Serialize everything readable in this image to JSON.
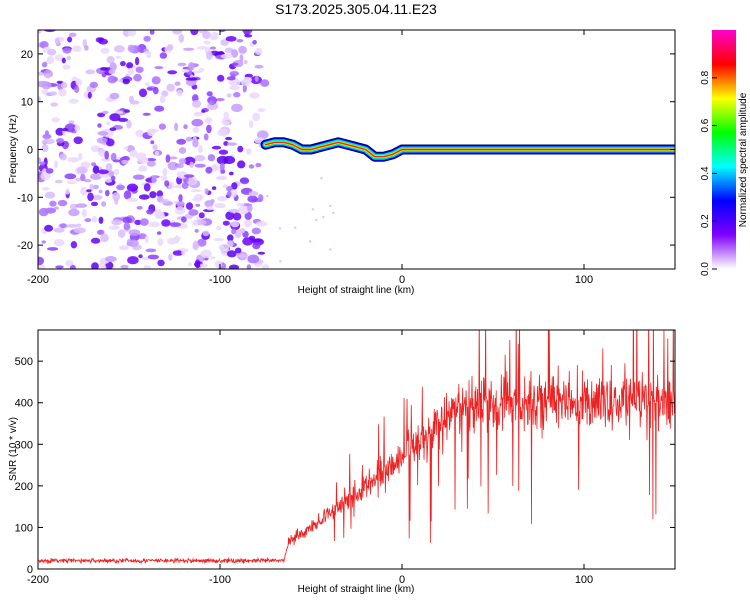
{
  "figure_title": "S173.2025.305.04.11.E23",
  "chart_data": [
    {
      "type": "heatmap",
      "id": "spectrogram",
      "xlabel": "Height of straight line (km)",
      "ylabel": "Frequency (Hz)",
      "xlim": [
        -200,
        150
      ],
      "ylim": [
        -25,
        25
      ],
      "xticks": [
        -200,
        -100,
        0,
        100
      ],
      "yticks": [
        -20,
        -10,
        0,
        10,
        20
      ],
      "noise_region_x": [
        -200,
        -75
      ],
      "signal_region_x": [
        -75,
        150
      ],
      "ridge": {
        "name": "dominant frequency ridge",
        "x": [
          -75,
          -70,
          -65,
          -60,
          -55,
          -50,
          -45,
          -40,
          -35,
          -30,
          -25,
          -20,
          -15,
          -10,
          -5,
          0,
          5,
          20,
          40,
          60,
          80,
          100,
          120,
          150
        ],
        "y": [
          1,
          1.5,
          1.5,
          1,
          0,
          0,
          0.5,
          1,
          1.5,
          1,
          0.5,
          0,
          -1.5,
          -1.5,
          -1,
          0,
          0,
          0,
          0,
          0,
          0,
          0,
          0,
          0
        ]
      },
      "colorbar": {
        "label": "Normalized spectral amplitude",
        "min": 0,
        "max": 1,
        "ticks": [
          "0.0",
          "0.2",
          "0.4",
          "0.6",
          "0.8"
        ],
        "colors": [
          "#ffffff",
          "#7f00ff",
          "#0000ff",
          "#00ffff",
          "#00ff00",
          "#ffff00",
          "#ff0000",
          "#ff00cc"
        ]
      }
    },
    {
      "type": "line",
      "id": "snr",
      "xlabel": "Height of straight line (km)",
      "ylabel": "SNR (10 * v/v)",
      "xlim": [
        -200,
        150
      ],
      "ylim": [
        0,
        575
      ],
      "xticks": [
        -200,
        -100,
        0,
        100
      ],
      "yticks": [
        0,
        100,
        200,
        300,
        400,
        500
      ],
      "color": "#ee2222",
      "series": [
        {
          "name": "SNR",
          "x": [
            -200,
            -180,
            -160,
            -140,
            -120,
            -100,
            -80,
            -65,
            -62,
            -55,
            -50,
            -45,
            -40,
            -35,
            -30,
            -25,
            -20,
            -15,
            -10,
            -5,
            0,
            5,
            10,
            15,
            20,
            25,
            30,
            40,
            50,
            60,
            70,
            80,
            90,
            100,
            110,
            120,
            130,
            140,
            150
          ],
          "y": [
            20,
            20,
            20,
            20,
            20,
            20,
            20,
            20,
            70,
            85,
            100,
            115,
            135,
            150,
            170,
            185,
            200,
            215,
            235,
            255,
            270,
            290,
            310,
            330,
            350,
            365,
            380,
            395,
            400,
            405,
            400,
            405,
            405,
            400,
            405,
            395,
            405,
            400,
            405
          ]
        }
      ]
    }
  ]
}
